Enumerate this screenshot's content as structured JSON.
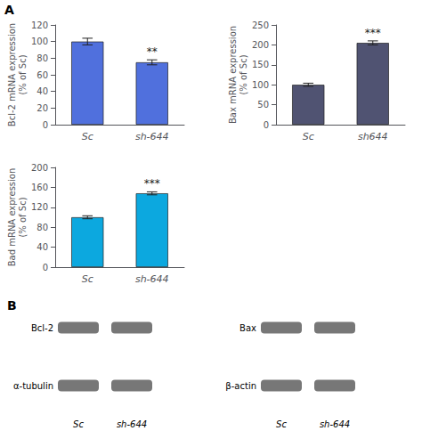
{
  "chart_data": [
    {
      "type": "bar",
      "categories": [
        "Sc",
        "sh-644"
      ],
      "values": [
        100,
        75
      ],
      "errors": [
        4,
        3
      ],
      "ylabel": "Bcl-2 mRNA expression\n(% of Sc)",
      "ylim": [
        0,
        120
      ],
      "yticks": [
        0,
        20,
        40,
        60,
        80,
        100,
        120
      ],
      "annotations": [
        null,
        "**"
      ],
      "grid": false
    },
    {
      "type": "bar",
      "categories": [
        "Sc",
        "sh644"
      ],
      "values": [
        100,
        205
      ],
      "errors": [
        4,
        5
      ],
      "ylabel": "Bax mRNA expression\n(% of Sc)",
      "ylim": [
        0,
        250
      ],
      "yticks": [
        0,
        50,
        100,
        150,
        200,
        250
      ],
      "annotations": [
        null,
        "***"
      ],
      "grid": false
    },
    {
      "type": "bar",
      "categories": [
        "Sc",
        "sh-644"
      ],
      "values": [
        100,
        148
      ],
      "errors": [
        3,
        3
      ],
      "ylabel": "Bad mRNA expression\n(% of Sc)",
      "ylim": [
        0,
        200
      ],
      "yticks": [
        0,
        40,
        80,
        120,
        160,
        200
      ],
      "annotations": [
        null,
        "***"
      ],
      "grid": false
    }
  ],
  "annotations": [
    "A",
    "B"
  ],
  "blots": [
    {
      "rows": [
        "Bcl-2",
        "α-tubulin"
      ],
      "lanes": [
        "Sc",
        "sh-644"
      ]
    },
    {
      "rows": [
        "Bax",
        "β-actin"
      ],
      "lanes": [
        "Sc",
        "sh-644"
      ]
    }
  ]
}
